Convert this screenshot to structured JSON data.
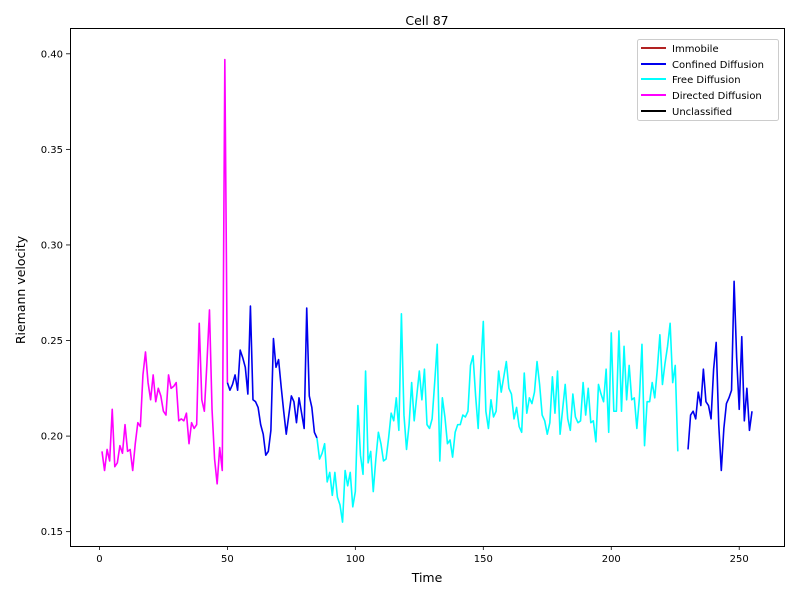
{
  "chart_data": {
    "type": "line",
    "title": "Cell 87",
    "xlabel": "Time",
    "ylabel": "Riemann velocity",
    "xlim": [
      -11.5,
      267.5
    ],
    "ylim": [
      0.1425,
      0.4135
    ],
    "xticks": [
      0,
      50,
      100,
      150,
      200,
      250
    ],
    "yticks": [
      0.15,
      0.2,
      0.25,
      0.3,
      0.35,
      0.4
    ],
    "ytick_labels": [
      "0.15",
      "0.20",
      "0.25",
      "0.30",
      "0.35",
      "0.40"
    ],
    "legend_position": "top-right",
    "legend": [
      {
        "label": "Immobile",
        "color": "#b22222"
      },
      {
        "label": "Confined Diffusion",
        "color": "#0000ee"
      },
      {
        "label": "Free Diffusion",
        "color": "#00ffff"
      },
      {
        "label": "Directed Diffusion",
        "color": "#ff00ff"
      },
      {
        "label": "Unclassified",
        "color": "#000000"
      }
    ],
    "series": [
      {
        "name": "Directed Diffusion",
        "color": "#ff00ff",
        "x_start": 1,
        "values": [
          0.192,
          0.182,
          0.193,
          0.187,
          0.214,
          0.184,
          0.186,
          0.195,
          0.191,
          0.206,
          0.192,
          0.193,
          0.182,
          0.196,
          0.207,
          0.205,
          0.232,
          0.244,
          0.228,
          0.219,
          0.232,
          0.218,
          0.225,
          0.221,
          0.213,
          0.211,
          0.232,
          0.225,
          0.226,
          0.228,
          0.208,
          0.209,
          0.208,
          0.212,
          0.196,
          0.207,
          0.204,
          0.206,
          0.259,
          0.219,
          0.213,
          0.238,
          0.266,
          0.214,
          0.188,
          0.175,
          0.194,
          0.182,
          0.397,
          0.228
        ]
      },
      {
        "name": "Confined Diffusion",
        "color": "#0000ee",
        "x_start": 50,
        "values": [
          0.228,
          0.224,
          0.227,
          0.232,
          0.224,
          0.245,
          0.241,
          0.236,
          0.222,
          0.268,
          0.219,
          0.218,
          0.215,
          0.206,
          0.201,
          0.19,
          0.192,
          0.203,
          0.251,
          0.236,
          0.24,
          0.226,
          0.213,
          0.201,
          0.211,
          0.221,
          0.218,
          0.207,
          0.22,
          0.212,
          0.204,
          0.267,
          0.221,
          0.215,
          0.202,
          0.199
        ]
      },
      {
        "name": "Free Diffusion",
        "color": "#00ffff",
        "x_start": 85,
        "values": [
          0.199,
          0.188,
          0.191,
          0.196,
          0.176,
          0.181,
          0.169,
          0.181,
          0.168,
          0.164,
          0.155,
          0.182,
          0.174,
          0.181,
          0.163,
          0.171,
          0.216,
          0.19,
          0.18,
          0.234,
          0.186,
          0.192,
          0.171,
          0.188,
          0.202,
          0.196,
          0.187,
          0.188,
          0.199,
          0.212,
          0.208,
          0.22,
          0.203,
          0.264,
          0.211,
          0.193,
          0.206,
          0.228,
          0.208,
          0.221,
          0.234,
          0.219,
          0.235,
          0.206,
          0.204,
          0.209,
          0.228,
          0.248,
          0.187,
          0.22,
          0.21,
          0.196,
          0.198,
          0.189,
          0.202,
          0.206,
          0.206,
          0.211,
          0.21,
          0.213,
          0.237,
          0.242,
          0.221,
          0.204,
          0.235,
          0.26,
          0.213,
          0.204,
          0.219,
          0.21,
          0.213,
          0.234,
          0.223,
          0.231,
          0.239,
          0.225,
          0.222,
          0.209,
          0.215,
          0.205,
          0.202,
          0.233,
          0.212,
          0.22,
          0.217,
          0.223,
          0.239,
          0.227,
          0.211,
          0.208,
          0.201,
          0.207,
          0.231,
          0.212,
          0.234,
          0.201,
          0.214,
          0.227,
          0.209,
          0.203,
          0.222,
          0.21,
          0.207,
          0.208,
          0.228,
          0.211,
          0.225,
          0.207,
          0.208,
          0.197,
          0.227,
          0.222,
          0.218,
          0.235,
          0.202,
          0.254,
          0.213,
          0.213,
          0.255,
          0.213,
          0.247,
          0.219,
          0.237,
          0.219,
          0.22,
          0.204,
          0.22,
          0.248,
          0.195,
          0.218,
          0.218,
          0.228,
          0.22,
          0.235,
          0.253,
          0.227,
          0.238,
          0.247,
          0.259,
          0.228,
          0.237,
          0.192
        ]
      },
      {
        "name": "Confined Diffusion",
        "color": "#0000ee",
        "x_start": 230,
        "values": [
          0.193,
          0.211,
          0.213,
          0.209,
          0.223,
          0.216,
          0.235,
          0.218,
          0.216,
          0.209,
          0.235,
          0.249,
          0.206,
          0.182,
          0.204,
          0.217,
          0.22,
          0.224,
          0.281,
          0.241,
          0.214,
          0.252,
          0.208,
          0.225,
          0.203,
          0.213
        ]
      }
    ]
  }
}
